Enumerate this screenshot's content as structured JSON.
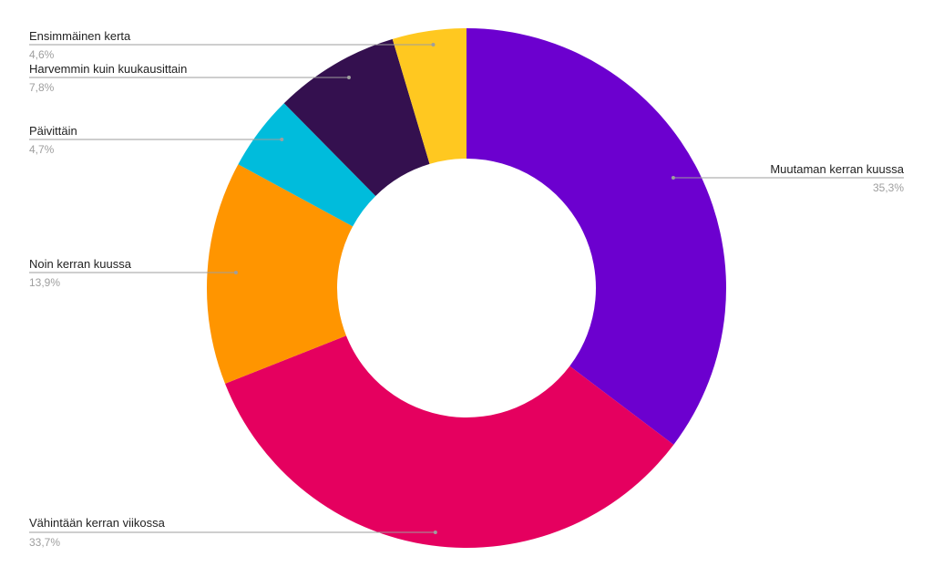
{
  "chart_data": {
    "type": "pie",
    "donut": true,
    "title": "",
    "legend": "none",
    "slices": [
      {
        "label": "Muutaman kerran kuussa",
        "value": 35.3,
        "display": "35,3%",
        "color": "#6c00cf"
      },
      {
        "label": "Vähintään kerran viikossa",
        "value": 33.7,
        "display": "33,7%",
        "color": "#e5005f"
      },
      {
        "label": "Noin kerran kuussa",
        "value": 13.9,
        "display": "13,9%",
        "color": "#ff9500"
      },
      {
        "label": "Päivittäin",
        "value": 4.7,
        "display": "4,7%",
        "color": "#00bcdc"
      },
      {
        "label": "Harvemmin kuin kuukausittain",
        "value": 7.8,
        "display": "7,8%",
        "color": "#34104f"
      },
      {
        "label": "Ensimmäinen kerta",
        "value": 4.6,
        "display": "4,6%",
        "color": "#ffc820"
      }
    ]
  }
}
